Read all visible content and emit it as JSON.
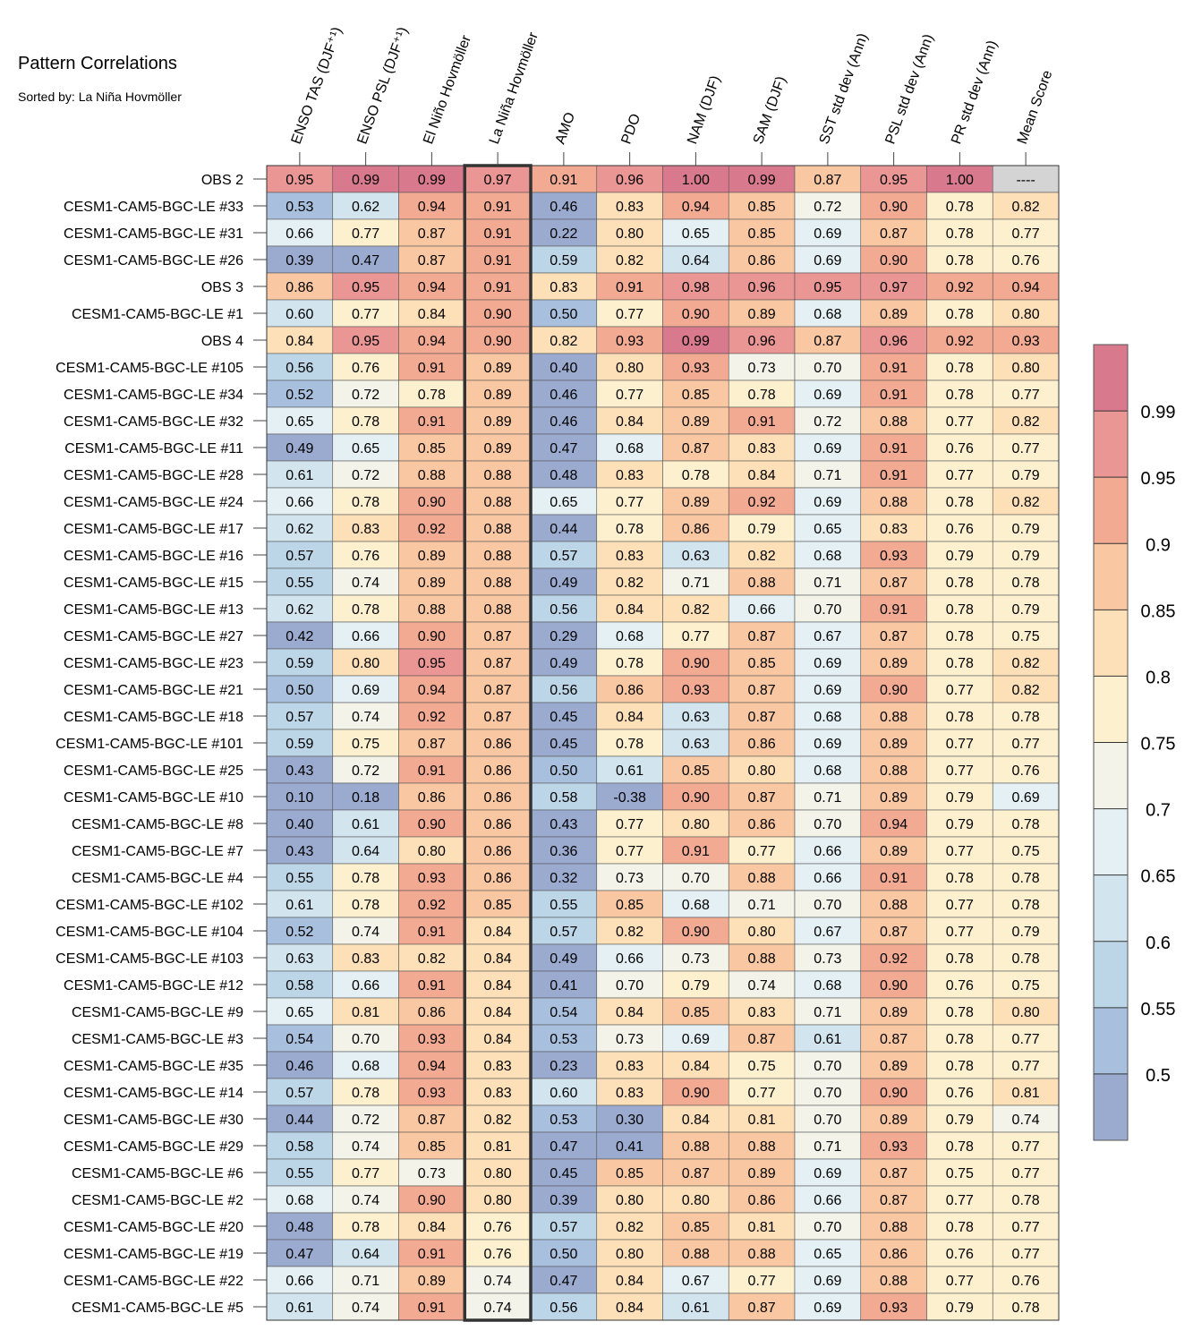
{
  "chart_data": {
    "type": "heatmap",
    "title": "Pattern Correlations",
    "subtitle": "Sorted by: La Niña Hovmöller",
    "columns": [
      "ENSO TAS (DJF⁺¹)",
      "ENSO PSL (DJF⁺¹)",
      "El Niño Hovmöller",
      "La Niña Hovmöller",
      "AMO",
      "PDO",
      "NAM (DJF)",
      "SAM (DJF)",
      "SST std dev (Ann)",
      "PSL std dev (Ann)",
      "PR std dev (Ann)",
      "Mean Score"
    ],
    "sorted_column": "La Niña Hovmöller",
    "missing_text": "----",
    "rows": [
      {
        "name": "OBS 2",
        "values": [
          "0.95",
          "0.99",
          "0.99",
          "0.97",
          "0.91",
          "0.96",
          "1.00",
          "0.99",
          "0.87",
          "0.95",
          "1.00",
          null
        ]
      },
      {
        "name": "CESM1-CAM5-BGC-LE #33",
        "values": [
          "0.53",
          "0.62",
          "0.94",
          "0.91",
          "0.46",
          "0.83",
          "0.94",
          "0.85",
          "0.72",
          "0.90",
          "0.78",
          "0.82"
        ]
      },
      {
        "name": "CESM1-CAM5-BGC-LE #31",
        "values": [
          "0.66",
          "0.77",
          "0.87",
          "0.91",
          "0.22",
          "0.80",
          "0.65",
          "0.85",
          "0.69",
          "0.87",
          "0.78",
          "0.77"
        ]
      },
      {
        "name": "CESM1-CAM5-BGC-LE #26",
        "values": [
          "0.39",
          "0.47",
          "0.87",
          "0.91",
          "0.59",
          "0.82",
          "0.64",
          "0.86",
          "0.69",
          "0.90",
          "0.78",
          "0.76"
        ]
      },
      {
        "name": "OBS 3",
        "values": [
          "0.86",
          "0.95",
          "0.94",
          "0.91",
          "0.83",
          "0.91",
          "0.98",
          "0.96",
          "0.95",
          "0.97",
          "0.92",
          "0.94"
        ]
      },
      {
        "name": "CESM1-CAM5-BGC-LE #1",
        "values": [
          "0.60",
          "0.77",
          "0.84",
          "0.90",
          "0.50",
          "0.77",
          "0.90",
          "0.89",
          "0.68",
          "0.89",
          "0.78",
          "0.80"
        ]
      },
      {
        "name": "OBS 4",
        "values": [
          "0.84",
          "0.95",
          "0.94",
          "0.90",
          "0.82",
          "0.93",
          "0.99",
          "0.96",
          "0.87",
          "0.96",
          "0.92",
          "0.93"
        ]
      },
      {
        "name": "CESM1-CAM5-BGC-LE #105",
        "values": [
          "0.56",
          "0.76",
          "0.91",
          "0.89",
          "0.40",
          "0.80",
          "0.93",
          "0.73",
          "0.70",
          "0.91",
          "0.78",
          "0.80"
        ]
      },
      {
        "name": "CESM1-CAM5-BGC-LE #34",
        "values": [
          "0.52",
          "0.72",
          "0.78",
          "0.89",
          "0.46",
          "0.77",
          "0.85",
          "0.78",
          "0.69",
          "0.91",
          "0.78",
          "0.77"
        ]
      },
      {
        "name": "CESM1-CAM5-BGC-LE #32",
        "values": [
          "0.65",
          "0.78",
          "0.91",
          "0.89",
          "0.46",
          "0.84",
          "0.89",
          "0.91",
          "0.72",
          "0.88",
          "0.77",
          "0.82"
        ]
      },
      {
        "name": "CESM1-CAM5-BGC-LE #11",
        "values": [
          "0.49",
          "0.65",
          "0.85",
          "0.89",
          "0.47",
          "0.68",
          "0.87",
          "0.83",
          "0.69",
          "0.91",
          "0.76",
          "0.77"
        ]
      },
      {
        "name": "CESM1-CAM5-BGC-LE #28",
        "values": [
          "0.61",
          "0.72",
          "0.88",
          "0.88",
          "0.48",
          "0.83",
          "0.78",
          "0.84",
          "0.71",
          "0.91",
          "0.77",
          "0.79"
        ]
      },
      {
        "name": "CESM1-CAM5-BGC-LE #24",
        "values": [
          "0.66",
          "0.78",
          "0.90",
          "0.88",
          "0.65",
          "0.77",
          "0.89",
          "0.92",
          "0.69",
          "0.88",
          "0.78",
          "0.82"
        ]
      },
      {
        "name": "CESM1-CAM5-BGC-LE #17",
        "values": [
          "0.62",
          "0.83",
          "0.92",
          "0.88",
          "0.44",
          "0.78",
          "0.86",
          "0.79",
          "0.65",
          "0.83",
          "0.76",
          "0.79"
        ]
      },
      {
        "name": "CESM1-CAM5-BGC-LE #16",
        "values": [
          "0.57",
          "0.76",
          "0.89",
          "0.88",
          "0.57",
          "0.83",
          "0.63",
          "0.82",
          "0.68",
          "0.93",
          "0.79",
          "0.79"
        ]
      },
      {
        "name": "CESM1-CAM5-BGC-LE #15",
        "values": [
          "0.55",
          "0.74",
          "0.89",
          "0.88",
          "0.49",
          "0.82",
          "0.71",
          "0.88",
          "0.71",
          "0.87",
          "0.78",
          "0.78"
        ]
      },
      {
        "name": "CESM1-CAM5-BGC-LE #13",
        "values": [
          "0.62",
          "0.78",
          "0.88",
          "0.88",
          "0.56",
          "0.84",
          "0.82",
          "0.66",
          "0.70",
          "0.91",
          "0.78",
          "0.79"
        ]
      },
      {
        "name": "CESM1-CAM5-BGC-LE #27",
        "values": [
          "0.42",
          "0.66",
          "0.90",
          "0.87",
          "0.29",
          "0.68",
          "0.77",
          "0.87",
          "0.67",
          "0.87",
          "0.78",
          "0.75"
        ]
      },
      {
        "name": "CESM1-CAM5-BGC-LE #23",
        "values": [
          "0.59",
          "0.80",
          "0.95",
          "0.87",
          "0.49",
          "0.78",
          "0.90",
          "0.85",
          "0.69",
          "0.89",
          "0.78",
          "0.82"
        ]
      },
      {
        "name": "CESM1-CAM5-BGC-LE #21",
        "values": [
          "0.50",
          "0.69",
          "0.94",
          "0.87",
          "0.56",
          "0.86",
          "0.93",
          "0.87",
          "0.69",
          "0.90",
          "0.77",
          "0.82"
        ]
      },
      {
        "name": "CESM1-CAM5-BGC-LE #18",
        "values": [
          "0.57",
          "0.74",
          "0.92",
          "0.87",
          "0.45",
          "0.84",
          "0.63",
          "0.87",
          "0.68",
          "0.88",
          "0.78",
          "0.78"
        ]
      },
      {
        "name": "CESM1-CAM5-BGC-LE #101",
        "values": [
          "0.59",
          "0.75",
          "0.87",
          "0.86",
          "0.45",
          "0.78",
          "0.63",
          "0.86",
          "0.69",
          "0.89",
          "0.77",
          "0.77"
        ]
      },
      {
        "name": "CESM1-CAM5-BGC-LE #25",
        "values": [
          "0.43",
          "0.72",
          "0.91",
          "0.86",
          "0.50",
          "0.61",
          "0.85",
          "0.80",
          "0.68",
          "0.88",
          "0.77",
          "0.76"
        ]
      },
      {
        "name": "CESM1-CAM5-BGC-LE #10",
        "values": [
          "0.10",
          "0.18",
          "0.86",
          "0.86",
          "0.58",
          "-0.38",
          "0.90",
          "0.87",
          "0.71",
          "0.89",
          "0.79",
          "0.69"
        ]
      },
      {
        "name": "CESM1-CAM5-BGC-LE #8",
        "values": [
          "0.40",
          "0.61",
          "0.90",
          "0.86",
          "0.43",
          "0.77",
          "0.80",
          "0.86",
          "0.70",
          "0.94",
          "0.79",
          "0.78"
        ]
      },
      {
        "name": "CESM1-CAM5-BGC-LE #7",
        "values": [
          "0.43",
          "0.64",
          "0.80",
          "0.86",
          "0.36",
          "0.77",
          "0.91",
          "0.77",
          "0.66",
          "0.89",
          "0.77",
          "0.75"
        ]
      },
      {
        "name": "CESM1-CAM5-BGC-LE #4",
        "values": [
          "0.55",
          "0.78",
          "0.93",
          "0.86",
          "0.32",
          "0.73",
          "0.70",
          "0.88",
          "0.66",
          "0.91",
          "0.78",
          "0.78"
        ]
      },
      {
        "name": "CESM1-CAM5-BGC-LE #102",
        "values": [
          "0.61",
          "0.78",
          "0.92",
          "0.85",
          "0.55",
          "0.85",
          "0.68",
          "0.71",
          "0.70",
          "0.88",
          "0.77",
          "0.78"
        ]
      },
      {
        "name": "CESM1-CAM5-BGC-LE #104",
        "values": [
          "0.52",
          "0.74",
          "0.91",
          "0.84",
          "0.57",
          "0.82",
          "0.90",
          "0.80",
          "0.67",
          "0.87",
          "0.77",
          "0.79"
        ]
      },
      {
        "name": "CESM1-CAM5-BGC-LE #103",
        "values": [
          "0.63",
          "0.83",
          "0.82",
          "0.84",
          "0.49",
          "0.66",
          "0.73",
          "0.88",
          "0.73",
          "0.92",
          "0.78",
          "0.78"
        ]
      },
      {
        "name": "CESM1-CAM5-BGC-LE #12",
        "values": [
          "0.58",
          "0.66",
          "0.91",
          "0.84",
          "0.41",
          "0.70",
          "0.79",
          "0.74",
          "0.68",
          "0.90",
          "0.76",
          "0.75"
        ]
      },
      {
        "name": "CESM1-CAM5-BGC-LE #9",
        "values": [
          "0.65",
          "0.81",
          "0.86",
          "0.84",
          "0.54",
          "0.84",
          "0.85",
          "0.83",
          "0.71",
          "0.89",
          "0.78",
          "0.80"
        ]
      },
      {
        "name": "CESM1-CAM5-BGC-LE #3",
        "values": [
          "0.54",
          "0.70",
          "0.93",
          "0.84",
          "0.53",
          "0.73",
          "0.69",
          "0.87",
          "0.61",
          "0.87",
          "0.78",
          "0.77"
        ]
      },
      {
        "name": "CESM1-CAM5-BGC-LE #35",
        "values": [
          "0.46",
          "0.68",
          "0.94",
          "0.83",
          "0.23",
          "0.83",
          "0.84",
          "0.75",
          "0.70",
          "0.89",
          "0.78",
          "0.77"
        ]
      },
      {
        "name": "CESM1-CAM5-BGC-LE #14",
        "values": [
          "0.57",
          "0.78",
          "0.93",
          "0.83",
          "0.60",
          "0.83",
          "0.90",
          "0.77",
          "0.70",
          "0.90",
          "0.76",
          "0.81"
        ]
      },
      {
        "name": "CESM1-CAM5-BGC-LE #30",
        "values": [
          "0.44",
          "0.72",
          "0.87",
          "0.82",
          "0.53",
          "0.30",
          "0.84",
          "0.81",
          "0.70",
          "0.89",
          "0.79",
          "0.74"
        ]
      },
      {
        "name": "CESM1-CAM5-BGC-LE #29",
        "values": [
          "0.58",
          "0.74",
          "0.85",
          "0.81",
          "0.47",
          "0.41",
          "0.88",
          "0.88",
          "0.71",
          "0.93",
          "0.78",
          "0.77"
        ]
      },
      {
        "name": "CESM1-CAM5-BGC-LE #6",
        "values": [
          "0.55",
          "0.77",
          "0.73",
          "0.80",
          "0.45",
          "0.85",
          "0.87",
          "0.89",
          "0.69",
          "0.87",
          "0.75",
          "0.77"
        ]
      },
      {
        "name": "CESM1-CAM5-BGC-LE #2",
        "values": [
          "0.68",
          "0.74",
          "0.90",
          "0.80",
          "0.39",
          "0.80",
          "0.80",
          "0.86",
          "0.66",
          "0.87",
          "0.77",
          "0.78"
        ]
      },
      {
        "name": "CESM1-CAM5-BGC-LE #20",
        "values": [
          "0.48",
          "0.78",
          "0.84",
          "0.76",
          "0.57",
          "0.82",
          "0.85",
          "0.81",
          "0.70",
          "0.88",
          "0.78",
          "0.77"
        ]
      },
      {
        "name": "CESM1-CAM5-BGC-LE #19",
        "values": [
          "0.47",
          "0.64",
          "0.91",
          "0.76",
          "0.50",
          "0.80",
          "0.88",
          "0.88",
          "0.65",
          "0.86",
          "0.76",
          "0.77"
        ]
      },
      {
        "name": "CESM1-CAM5-BGC-LE #22",
        "values": [
          "0.66",
          "0.71",
          "0.89",
          "0.74",
          "0.47",
          "0.84",
          "0.67",
          "0.77",
          "0.69",
          "0.88",
          "0.77",
          "0.76"
        ]
      },
      {
        "name": "CESM1-CAM5-BGC-LE #5",
        "values": [
          "0.61",
          "0.74",
          "0.91",
          "0.74",
          "0.56",
          "0.84",
          "0.61",
          "0.87",
          "0.69",
          "0.93",
          "0.79",
          "0.78"
        ]
      }
    ],
    "colorbar": {
      "ticks": [
        "0.99",
        "0.95",
        "0.9",
        "0.85",
        "0.8",
        "0.75",
        "0.7",
        "0.65",
        "0.6",
        "0.55",
        "0.5"
      ],
      "levels": [
        0.5,
        0.55,
        0.6,
        0.65,
        0.7,
        0.75,
        0.8,
        0.85,
        0.9,
        0.95,
        0.99
      ],
      "colors": [
        "#9babd0",
        "#a8c0dd",
        "#bcd6e8",
        "#d2e5ef",
        "#e4f0f4",
        "#f3f3ea",
        "#fdf0cf",
        "#fde0b8",
        "#f9c8a2",
        "#f2aa92",
        "#ea9694",
        "#d8798e"
      ],
      "missing_color": "#d4d4d4",
      "highlight_border": "#333333"
    }
  }
}
